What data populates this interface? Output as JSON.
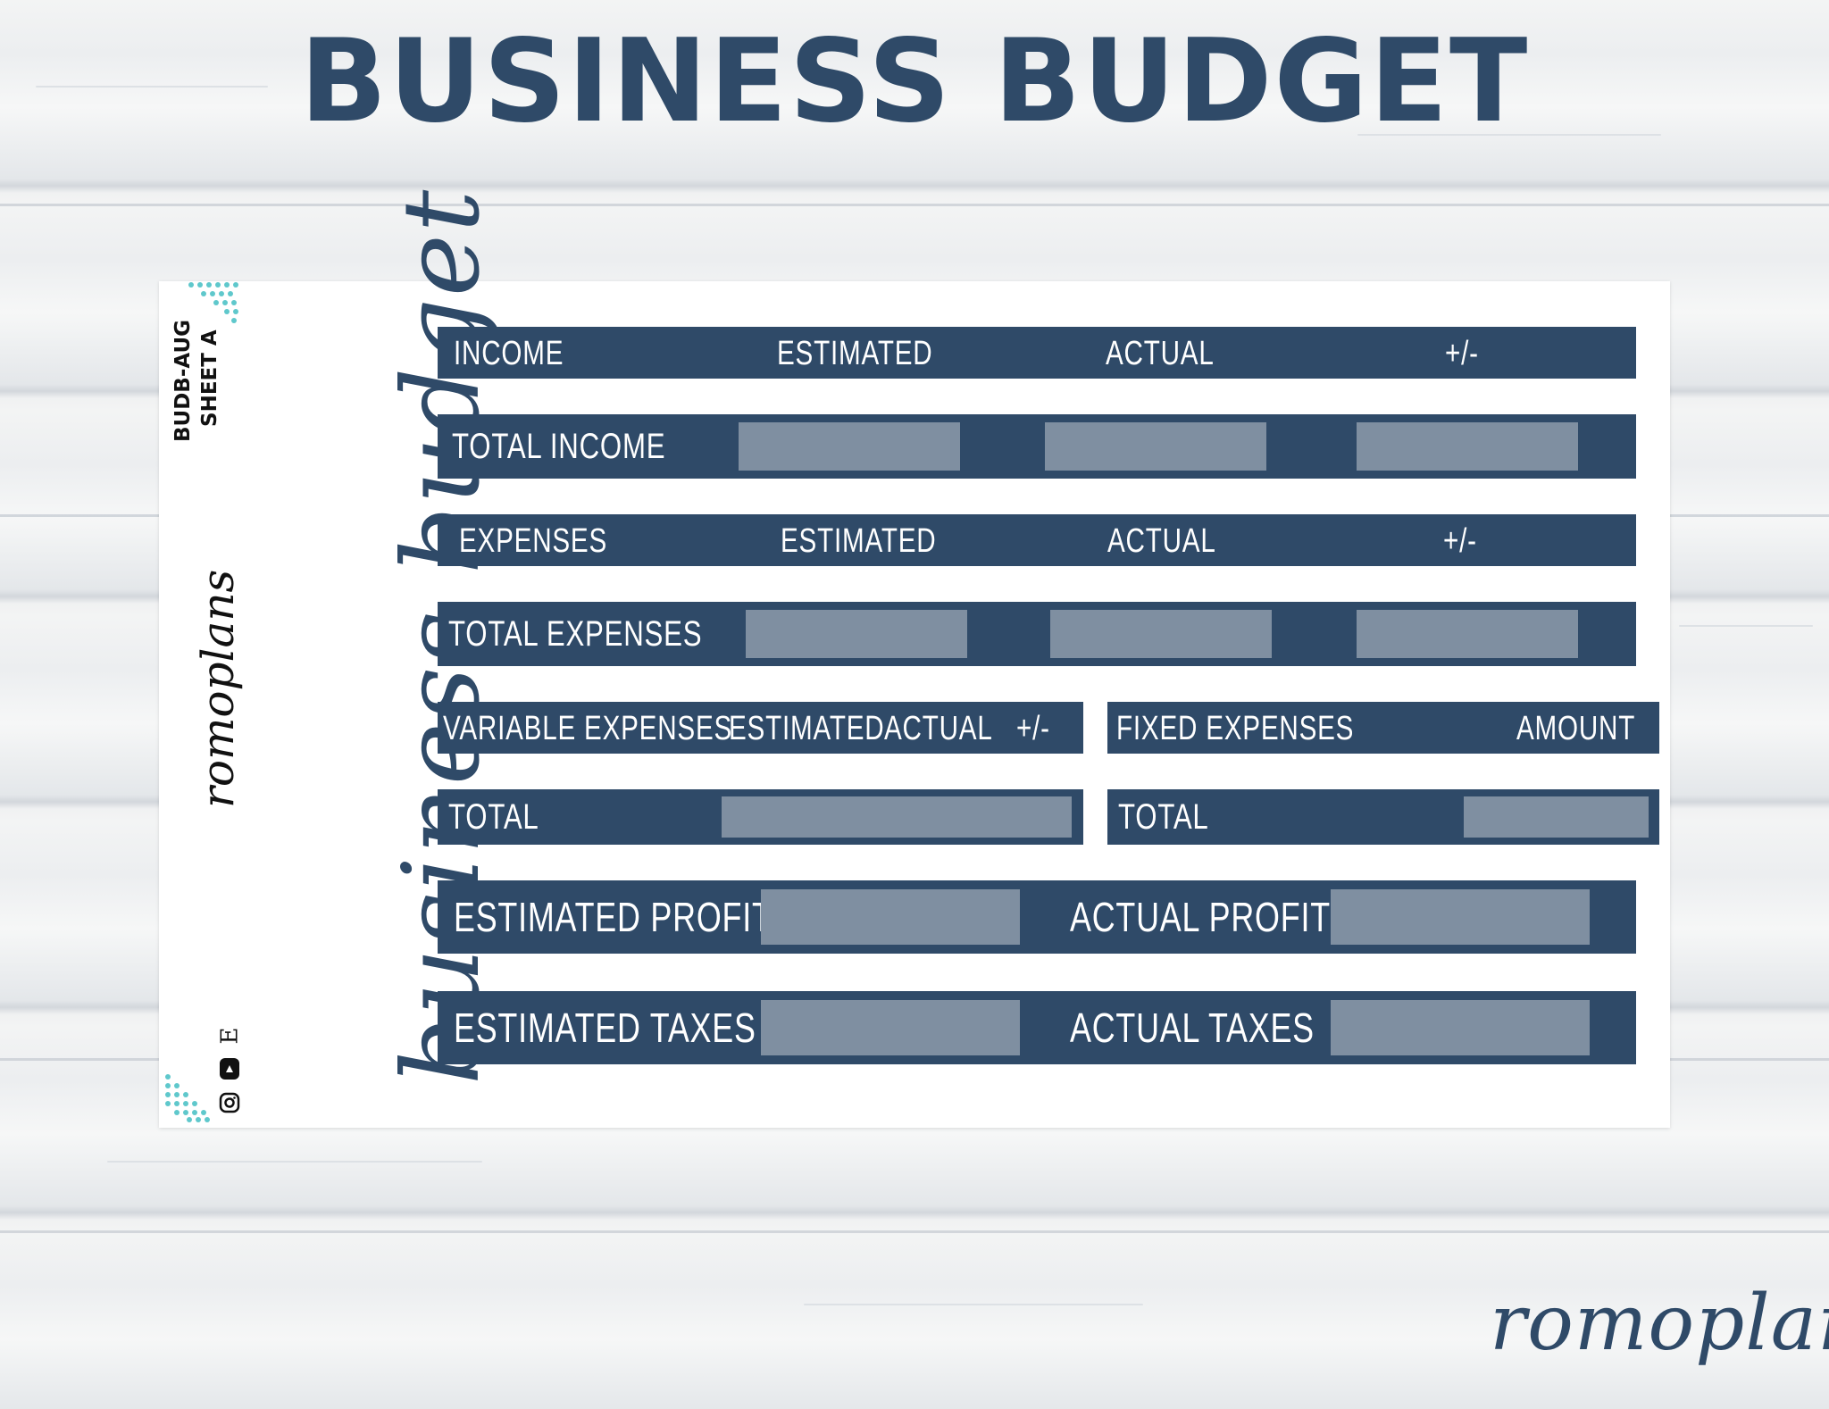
{
  "title": "BUSINESS BUDGET",
  "sheet": {
    "code_line1": "BUDB-AUG",
    "code_line2": "SHEET A",
    "brand_vertical": "romoplans",
    "script_title": "business budget",
    "social_icons": [
      "etsy-icon",
      "youtube-icon",
      "instagram-icon"
    ],
    "etsy_letter": "E"
  },
  "income_header": {
    "c1": "INCOME",
    "c2": "ESTIMATED",
    "c3": "ACTUAL",
    "c4": "+/-"
  },
  "income_total": {
    "label": "TOTAL INCOME"
  },
  "expenses_header": {
    "c1": "EXPENSES",
    "c2": "ESTIMATED",
    "c3": "ACTUAL",
    "c4": "+/-"
  },
  "expenses_total": {
    "label": "TOTAL EXPENSES"
  },
  "variable_header": {
    "c1": "VARIABLE EXPENSES",
    "c2": "ESTIMATED",
    "c3": "ACTUAL",
    "c4": "+/-"
  },
  "fixed_header": {
    "c1": "FIXED EXPENSES",
    "c2": "AMOUNT"
  },
  "variable_total": {
    "label": "TOTAL"
  },
  "fixed_total": {
    "label": "TOTAL"
  },
  "profit": {
    "estimated": "ESTIMATED PROFIT",
    "actual": "ACTUAL PROFIT"
  },
  "taxes": {
    "estimated": "ESTIMATED TAXES",
    "actual": "ACTUAL TAXES"
  },
  "footer_brand": "romoplans",
  "colors": {
    "navy": "#2f4a68",
    "box_gray": "#7f8fa1",
    "teal_dots": "#5fc8cc"
  }
}
